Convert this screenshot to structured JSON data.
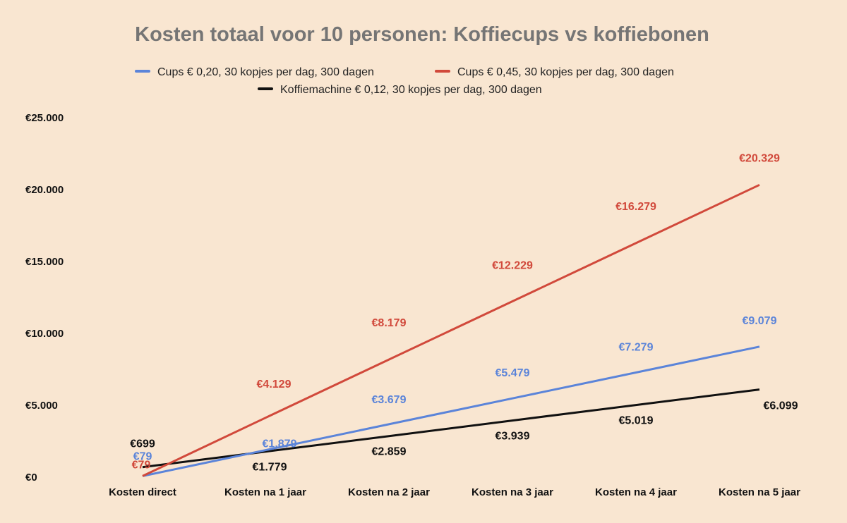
{
  "chart_data": {
    "type": "line",
    "title": "Kosten totaal voor 10 personen: Koffiecups vs koffiebonen",
    "xlabel": "",
    "ylabel": "",
    "categories": [
      "Kosten direct",
      "Kosten na 1 jaar",
      "Kosten na 2 jaar",
      "Kosten na 3 jaar",
      "Kosten na 4 jaar",
      "Kosten na 5 jaar"
    ],
    "ylim": [
      0,
      25000
    ],
    "yticks": [
      0,
      5000,
      10000,
      15000,
      20000,
      25000
    ],
    "ytick_labels": [
      "€0",
      "€5.000",
      "€10.000",
      "€15.000",
      "€20.000",
      "€25.000"
    ],
    "grid": false,
    "legend_position": "top",
    "series": [
      {
        "name": "Cups € 0,20, 30 kopjes per dag, 300 dagen",
        "color": "#5b84d9",
        "values": [
          79,
          1879,
          3679,
          5479,
          7279,
          9079
        ],
        "labels": [
          "€79",
          "€1.879",
          "€3.679",
          "€5.479",
          "€7.279",
          "€9.079"
        ]
      },
      {
        "name": "Cups € 0,45, 30 kopjes per dag, 300 dagen",
        "color": "#d1493b",
        "values": [
          79,
          4129,
          8179,
          12229,
          16279,
          20329
        ],
        "labels": [
          "€79",
          "€4.129",
          "€8.179",
          "€12.229",
          "€16.279",
          "€20.329"
        ]
      },
      {
        "name": "Koffiemachine € 0,12, 30 kopjes per dag, 300 dagen",
        "color": "#111111",
        "values": [
          699,
          1779,
          2859,
          3939,
          5019,
          6099
        ],
        "labels": [
          "€699",
          "€1.779",
          "€2.859",
          "€3.939",
          "€5.019",
          "€6.099"
        ]
      }
    ]
  }
}
